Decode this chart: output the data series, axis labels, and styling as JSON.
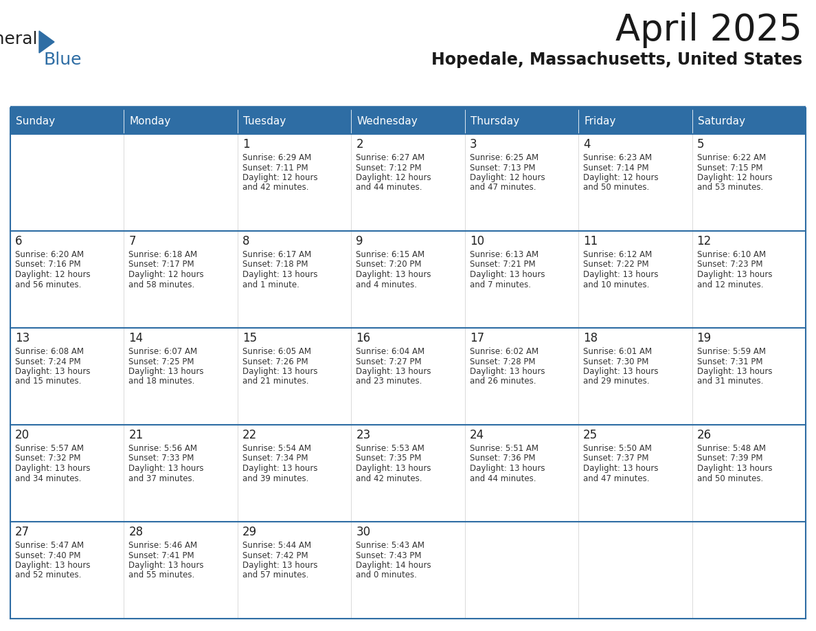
{
  "title": "April 2025",
  "subtitle": "Hopedale, Massachusetts, United States",
  "header_bg_color": "#2E6DA4",
  "header_text_color": "#FFFFFF",
  "row_bg_white": "#FFFFFF",
  "row_bg_gray": "#F0F0F0",
  "day_number_color": "#222222",
  "text_color": "#333333",
  "line_color": "#2E6DA4",
  "days_of_week": [
    "Sunday",
    "Monday",
    "Tuesday",
    "Wednesday",
    "Thursday",
    "Friday",
    "Saturday"
  ],
  "calendar_data": [
    [
      {
        "day": "",
        "sunrise": "",
        "sunset": "",
        "daylight": ""
      },
      {
        "day": "",
        "sunrise": "",
        "sunset": "",
        "daylight": ""
      },
      {
        "day": "1",
        "sunrise": "6:29 AM",
        "sunset": "7:11 PM",
        "daylight": "12 hours and 42 minutes."
      },
      {
        "day": "2",
        "sunrise": "6:27 AM",
        "sunset": "7:12 PM",
        "daylight": "12 hours and 44 minutes."
      },
      {
        "day": "3",
        "sunrise": "6:25 AM",
        "sunset": "7:13 PM",
        "daylight": "12 hours and 47 minutes."
      },
      {
        "day": "4",
        "sunrise": "6:23 AM",
        "sunset": "7:14 PM",
        "daylight": "12 hours and 50 minutes."
      },
      {
        "day": "5",
        "sunrise": "6:22 AM",
        "sunset": "7:15 PM",
        "daylight": "12 hours and 53 minutes."
      }
    ],
    [
      {
        "day": "6",
        "sunrise": "6:20 AM",
        "sunset": "7:16 PM",
        "daylight": "12 hours and 56 minutes."
      },
      {
        "day": "7",
        "sunrise": "6:18 AM",
        "sunset": "7:17 PM",
        "daylight": "12 hours and 58 minutes."
      },
      {
        "day": "8",
        "sunrise": "6:17 AM",
        "sunset": "7:18 PM",
        "daylight": "13 hours and 1 minute."
      },
      {
        "day": "9",
        "sunrise": "6:15 AM",
        "sunset": "7:20 PM",
        "daylight": "13 hours and 4 minutes."
      },
      {
        "day": "10",
        "sunrise": "6:13 AM",
        "sunset": "7:21 PM",
        "daylight": "13 hours and 7 minutes."
      },
      {
        "day": "11",
        "sunrise": "6:12 AM",
        "sunset": "7:22 PM",
        "daylight": "13 hours and 10 minutes."
      },
      {
        "day": "12",
        "sunrise": "6:10 AM",
        "sunset": "7:23 PM",
        "daylight": "13 hours and 12 minutes."
      }
    ],
    [
      {
        "day": "13",
        "sunrise": "6:08 AM",
        "sunset": "7:24 PM",
        "daylight": "13 hours and 15 minutes."
      },
      {
        "day": "14",
        "sunrise": "6:07 AM",
        "sunset": "7:25 PM",
        "daylight": "13 hours and 18 minutes."
      },
      {
        "day": "15",
        "sunrise": "6:05 AM",
        "sunset": "7:26 PM",
        "daylight": "13 hours and 21 minutes."
      },
      {
        "day": "16",
        "sunrise": "6:04 AM",
        "sunset": "7:27 PM",
        "daylight": "13 hours and 23 minutes."
      },
      {
        "day": "17",
        "sunrise": "6:02 AM",
        "sunset": "7:28 PM",
        "daylight": "13 hours and 26 minutes."
      },
      {
        "day": "18",
        "sunrise": "6:01 AM",
        "sunset": "7:30 PM",
        "daylight": "13 hours and 29 minutes."
      },
      {
        "day": "19",
        "sunrise": "5:59 AM",
        "sunset": "7:31 PM",
        "daylight": "13 hours and 31 minutes."
      }
    ],
    [
      {
        "day": "20",
        "sunrise": "5:57 AM",
        "sunset": "7:32 PM",
        "daylight": "13 hours and 34 minutes."
      },
      {
        "day": "21",
        "sunrise": "5:56 AM",
        "sunset": "7:33 PM",
        "daylight": "13 hours and 37 minutes."
      },
      {
        "day": "22",
        "sunrise": "5:54 AM",
        "sunset": "7:34 PM",
        "daylight": "13 hours and 39 minutes."
      },
      {
        "day": "23",
        "sunrise": "5:53 AM",
        "sunset": "7:35 PM",
        "daylight": "13 hours and 42 minutes."
      },
      {
        "day": "24",
        "sunrise": "5:51 AM",
        "sunset": "7:36 PM",
        "daylight": "13 hours and 44 minutes."
      },
      {
        "day": "25",
        "sunrise": "5:50 AM",
        "sunset": "7:37 PM",
        "daylight": "13 hours and 47 minutes."
      },
      {
        "day": "26",
        "sunrise": "5:48 AM",
        "sunset": "7:39 PM",
        "daylight": "13 hours and 50 minutes."
      }
    ],
    [
      {
        "day": "27",
        "sunrise": "5:47 AM",
        "sunset": "7:40 PM",
        "daylight": "13 hours and 52 minutes."
      },
      {
        "day": "28",
        "sunrise": "5:46 AM",
        "sunset": "7:41 PM",
        "daylight": "13 hours and 55 minutes."
      },
      {
        "day": "29",
        "sunrise": "5:44 AM",
        "sunset": "7:42 PM",
        "daylight": "13 hours and 57 minutes."
      },
      {
        "day": "30",
        "sunrise": "5:43 AM",
        "sunset": "7:43 PM",
        "daylight": "14 hours and 0 minutes."
      },
      {
        "day": "",
        "sunrise": "",
        "sunset": "",
        "daylight": ""
      },
      {
        "day": "",
        "sunrise": "",
        "sunset": "",
        "daylight": ""
      },
      {
        "day": "",
        "sunrise": "",
        "sunset": "",
        "daylight": ""
      }
    ]
  ]
}
